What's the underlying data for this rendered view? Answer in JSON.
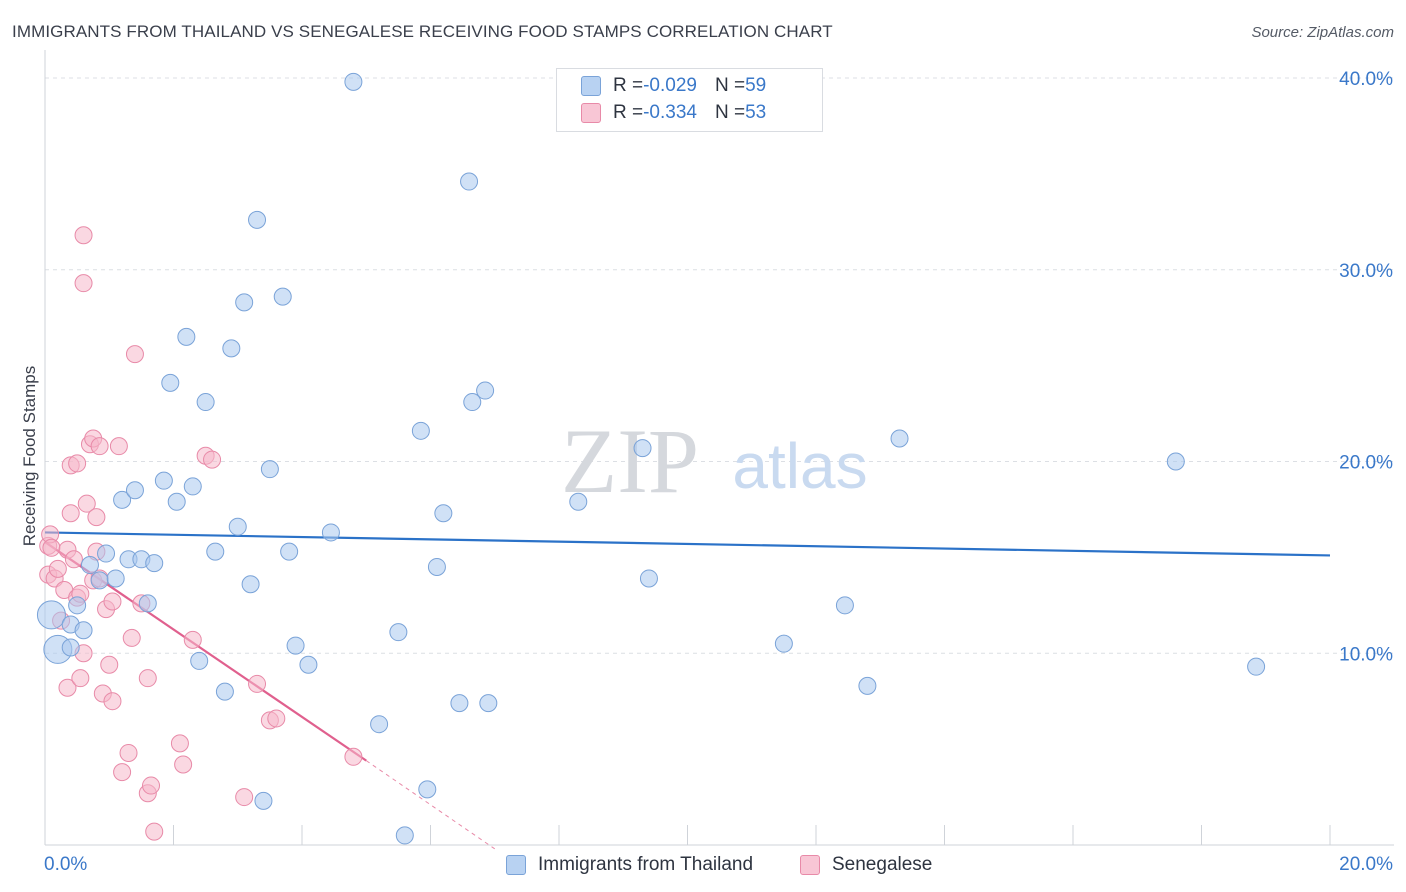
{
  "title": "IMMIGRANTS FROM THAILAND VS SENEGALESE RECEIVING FOOD STAMPS CORRELATION CHART",
  "source": "Source: ZipAtlas.com",
  "watermark": {
    "zip": "ZIP",
    "atlas": "atlas"
  },
  "legend": {
    "series1": {
      "r_label": "R = ",
      "r_value": "-0.029",
      "n_label": "N = ",
      "n_value": "59"
    },
    "series2": {
      "r_label": "R = ",
      "r_value": "-0.334",
      "n_label": "N = ",
      "n_value": "53"
    }
  },
  "bottom_legend": {
    "series1": "Immigrants from Thailand",
    "series2": "Senegalese"
  },
  "colors": {
    "blue_fill": "#a9c8ef",
    "blue_stroke": "#7aa3d8",
    "blue_line": "#2b72c8",
    "pink_fill": "#f5b8cb",
    "pink_stroke": "#e88aa8",
    "pink_line": "#e0608e",
    "tick_text": "#3a78c9",
    "grid": "#dcdfe4"
  },
  "chart_data": {
    "type": "scatter",
    "title": "IMMIGRANTS FROM THAILAND VS SENEGALESE RECEIVING FOOD STAMPS CORRELATION CHART",
    "xlabel": "",
    "ylabel": "Receiving Food Stamps",
    "xlim": [
      0,
      20
    ],
    "ylim": [
      0,
      40
    ],
    "x_tick_labels": [
      "0.0%",
      "20.0%"
    ],
    "y_ticks": [
      10,
      20,
      30,
      40
    ],
    "y_tick_labels": [
      "10.0%",
      "20.0%",
      "30.0%",
      "40.0%"
    ],
    "grid": true,
    "legend_position": "top-center",
    "series": [
      {
        "name": "Immigrants from Thailand",
        "r": -0.029,
        "n": 59,
        "trend": {
          "x": [
            0,
            20
          ],
          "y": [
            16.3,
            15.1
          ]
        },
        "points": [
          [
            0.1,
            12.0
          ],
          [
            0.2,
            10.2
          ],
          [
            0.4,
            10.3
          ],
          [
            0.4,
            11.5
          ],
          [
            0.5,
            12.5
          ],
          [
            0.6,
            11.2
          ],
          [
            0.7,
            14.6
          ],
          [
            0.85,
            13.8
          ],
          [
            0.95,
            15.2
          ],
          [
            1.1,
            13.9
          ],
          [
            1.2,
            18.0
          ],
          [
            1.3,
            14.9
          ],
          [
            1.4,
            18.5
          ],
          [
            1.5,
            14.9
          ],
          [
            1.6,
            12.6
          ],
          [
            1.7,
            14.7
          ],
          [
            1.85,
            19.0
          ],
          [
            1.95,
            24.1
          ],
          [
            2.05,
            17.9
          ],
          [
            2.2,
            26.5
          ],
          [
            2.3,
            18.7
          ],
          [
            2.4,
            9.6
          ],
          [
            2.5,
            23.1
          ],
          [
            2.65,
            15.3
          ],
          [
            2.8,
            8.0
          ],
          [
            2.9,
            25.9
          ],
          [
            3.0,
            16.6
          ],
          [
            3.1,
            28.3
          ],
          [
            3.2,
            13.6
          ],
          [
            3.3,
            32.6
          ],
          [
            3.4,
            2.3
          ],
          [
            3.5,
            19.6
          ],
          [
            3.7,
            28.6
          ],
          [
            3.8,
            15.3
          ],
          [
            3.9,
            10.4
          ],
          [
            4.1,
            9.4
          ],
          [
            4.45,
            16.3
          ],
          [
            4.8,
            39.8
          ],
          [
            5.2,
            6.3
          ],
          [
            5.5,
            11.1
          ],
          [
            5.6,
            0.5
          ],
          [
            5.85,
            21.6
          ],
          [
            5.95,
            2.9
          ],
          [
            6.1,
            14.5
          ],
          [
            6.2,
            17.3
          ],
          [
            6.45,
            7.4
          ],
          [
            6.6,
            34.6
          ],
          [
            6.65,
            23.1
          ],
          [
            6.85,
            23.7
          ],
          [
            6.9,
            7.4
          ],
          [
            8.3,
            17.9
          ],
          [
            9.3,
            20.7
          ],
          [
            9.4,
            13.9
          ],
          [
            11.5,
            10.5
          ],
          [
            12.45,
            12.5
          ],
          [
            12.8,
            8.3
          ],
          [
            13.3,
            21.2
          ],
          [
            17.6,
            20.0
          ],
          [
            18.85,
            9.3
          ]
        ]
      },
      {
        "name": "Senegalese",
        "r": -0.334,
        "n": 53,
        "trend": {
          "x": [
            0,
            5
          ],
          "y": [
            15.8,
            4.4
          ]
        },
        "trend_dashed": {
          "x": [
            5,
            7
          ],
          "y": [
            4.4,
            -0.2
          ]
        },
        "points": [
          [
            0.05,
            15.6
          ],
          [
            0.05,
            14.1
          ],
          [
            0.08,
            16.2
          ],
          [
            0.1,
            15.5
          ],
          [
            0.15,
            13.9
          ],
          [
            0.2,
            14.4
          ],
          [
            0.25,
            11.7
          ],
          [
            0.3,
            13.3
          ],
          [
            0.35,
            8.2
          ],
          [
            0.35,
            15.4
          ],
          [
            0.4,
            17.3
          ],
          [
            0.4,
            19.8
          ],
          [
            0.45,
            14.9
          ],
          [
            0.5,
            19.9
          ],
          [
            0.5,
            12.9
          ],
          [
            0.55,
            13.1
          ],
          [
            0.55,
            8.7
          ],
          [
            0.6,
            31.8
          ],
          [
            0.6,
            29.3
          ],
          [
            0.6,
            10.0
          ],
          [
            0.65,
            17.8
          ],
          [
            0.7,
            20.9
          ],
          [
            0.75,
            13.8
          ],
          [
            0.75,
            21.2
          ],
          [
            0.8,
            17.1
          ],
          [
            0.8,
            15.3
          ],
          [
            0.85,
            20.8
          ],
          [
            0.85,
            13.9
          ],
          [
            0.9,
            7.9
          ],
          [
            0.95,
            12.3
          ],
          [
            1.0,
            9.4
          ],
          [
            1.05,
            7.5
          ],
          [
            1.05,
            12.7
          ],
          [
            1.15,
            20.8
          ],
          [
            1.2,
            3.8
          ],
          [
            1.3,
            4.8
          ],
          [
            1.35,
            10.8
          ],
          [
            1.4,
            25.6
          ],
          [
            1.5,
            12.6
          ],
          [
            1.6,
            2.7
          ],
          [
            1.6,
            8.7
          ],
          [
            1.65,
            3.1
          ],
          [
            1.7,
            0.7
          ],
          [
            2.1,
            5.3
          ],
          [
            2.15,
            4.2
          ],
          [
            2.3,
            10.7
          ],
          [
            2.5,
            20.3
          ],
          [
            2.6,
            20.1
          ],
          [
            3.1,
            2.5
          ],
          [
            3.3,
            8.4
          ],
          [
            3.5,
            6.5
          ],
          [
            3.6,
            6.6
          ],
          [
            4.8,
            4.6
          ]
        ]
      }
    ]
  }
}
